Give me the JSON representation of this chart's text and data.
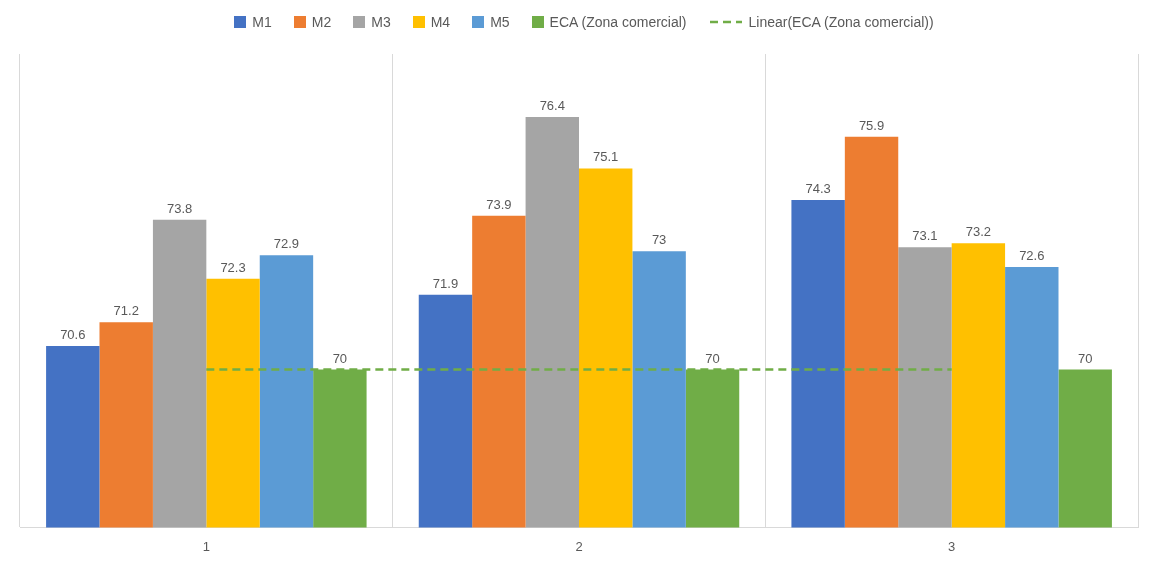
{
  "chart_data": {
    "type": "bar",
    "categories": [
      "1",
      "2",
      "3"
    ],
    "ylim": [
      66,
      78
    ],
    "tick_labels": "x",
    "grid": "x",
    "legend": "top",
    "data_labels": true,
    "series": [
      {
        "name": "M1",
        "color": "#4472c4",
        "values": [
          70.6,
          71.9,
          74.3
        ]
      },
      {
        "name": "M2",
        "color": "#ed7d31",
        "values": [
          71.2,
          73.9,
          75.9
        ]
      },
      {
        "name": "M3",
        "color": "#a5a5a5",
        "values": [
          73.8,
          76.4,
          73.1
        ]
      },
      {
        "name": "M4",
        "color": "#ffc000",
        "values": [
          72.3,
          75.1,
          73.2
        ]
      },
      {
        "name": "M5",
        "color": "#5b9bd5",
        "values": [
          72.9,
          73,
          72.6
        ]
      },
      {
        "name": "ECA (Zona comercial)",
        "color": "#70ad47",
        "values": [
          70,
          70,
          70
        ]
      },
      {
        "name": "Linear(ECA (Zona comercial))",
        "type": "line",
        "color": "#70ad47",
        "line_style": "dashed",
        "marker": "none",
        "values": [
          70,
          70,
          70
        ],
        "value_labels": [
          null,
          null,
          null
        ]
      }
    ]
  }
}
